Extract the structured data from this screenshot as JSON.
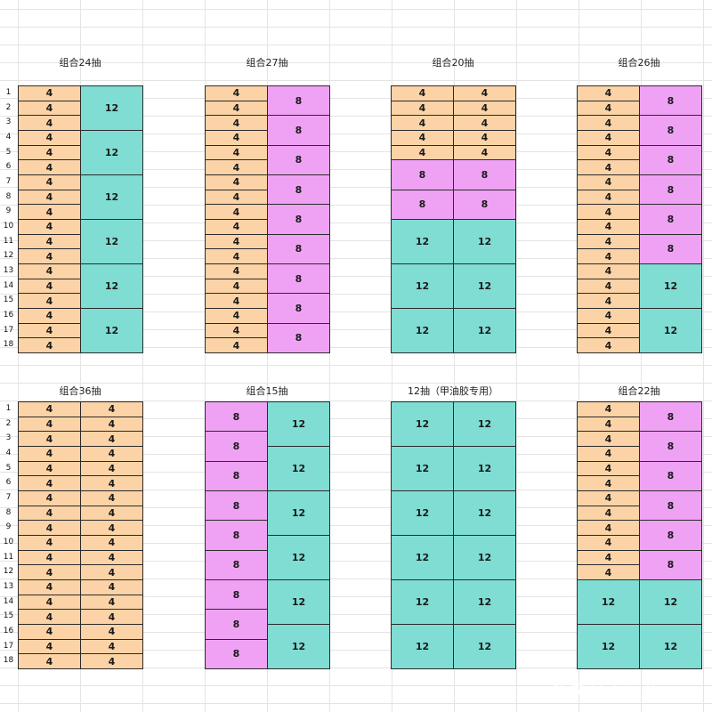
{
  "row_numbers": [
    "1",
    "2",
    "3",
    "4",
    "5",
    "6",
    "7",
    "8",
    "9",
    "10",
    "11",
    "12",
    "13",
    "14",
    "15",
    "16",
    "17",
    "18"
  ],
  "colors": {
    "4": "#fbd3a6",
    "8": "#efa2f4",
    "12": "#7fddd3"
  },
  "watermark": "风家具工厂店",
  "blocks": [
    {
      "title": "组合24抽",
      "columns": [
        [
          "4",
          "4",
          "4",
          "4",
          "4",
          "4",
          "4",
          "4",
          "4",
          "4",
          "4",
          "4",
          "4",
          "4",
          "4",
          "4",
          "4",
          "4"
        ],
        [
          "12",
          "12",
          "12",
          "12",
          "12",
          "12"
        ]
      ]
    },
    {
      "title": "组合27抽",
      "columns": [
        [
          "4",
          "4",
          "4",
          "4",
          "4",
          "4",
          "4",
          "4",
          "4",
          "4",
          "4",
          "4",
          "4",
          "4",
          "4",
          "4",
          "4",
          "4"
        ],
        [
          "8",
          "8",
          "8",
          "8",
          "8",
          "8",
          "8",
          "8",
          "8"
        ]
      ]
    },
    {
      "title": "组合20抽",
      "columns": [
        [
          "4",
          "4",
          "4",
          "4",
          "4",
          "8",
          "8",
          "12",
          "12",
          "12"
        ],
        [
          "4",
          "4",
          "4",
          "4",
          "4",
          "8",
          "8",
          "12",
          "12",
          "12"
        ]
      ]
    },
    {
      "title": "组合26抽",
      "columns": [
        [
          "4",
          "4",
          "4",
          "4",
          "4",
          "4",
          "4",
          "4",
          "4",
          "4",
          "4",
          "4",
          "4",
          "4",
          "4",
          "4",
          "4",
          "4"
        ],
        [
          "8",
          "8",
          "8",
          "8",
          "8",
          "8",
          "12",
          "12"
        ]
      ]
    },
    {
      "title": "组合36抽",
      "columns": [
        [
          "4",
          "4",
          "4",
          "4",
          "4",
          "4",
          "4",
          "4",
          "4",
          "4",
          "4",
          "4",
          "4",
          "4",
          "4",
          "4",
          "4",
          "4"
        ],
        [
          "4",
          "4",
          "4",
          "4",
          "4",
          "4",
          "4",
          "4",
          "4",
          "4",
          "4",
          "4",
          "4",
          "4",
          "4",
          "4",
          "4",
          "4"
        ]
      ]
    },
    {
      "title": "组合15抽",
      "columns": [
        [
          "8",
          "8",
          "8",
          "8",
          "8",
          "8",
          "8",
          "8",
          "8"
        ],
        [
          "12",
          "12",
          "12",
          "12",
          "12",
          "12"
        ]
      ]
    },
    {
      "title": "12抽（甲油胶专用）",
      "columns": [
        [
          "12",
          "12",
          "12",
          "12",
          "12",
          "12"
        ],
        [
          "12",
          "12",
          "12",
          "12",
          "12",
          "12"
        ]
      ]
    },
    {
      "title": "组合22抽",
      "columns": [
        [
          "4",
          "4",
          "4",
          "4",
          "4",
          "4",
          "4",
          "4",
          "4",
          "4",
          "4",
          "4",
          "12",
          "12"
        ],
        [
          "8",
          "8",
          "8",
          "8",
          "8",
          "8",
          "12",
          "12"
        ]
      ]
    }
  ]
}
